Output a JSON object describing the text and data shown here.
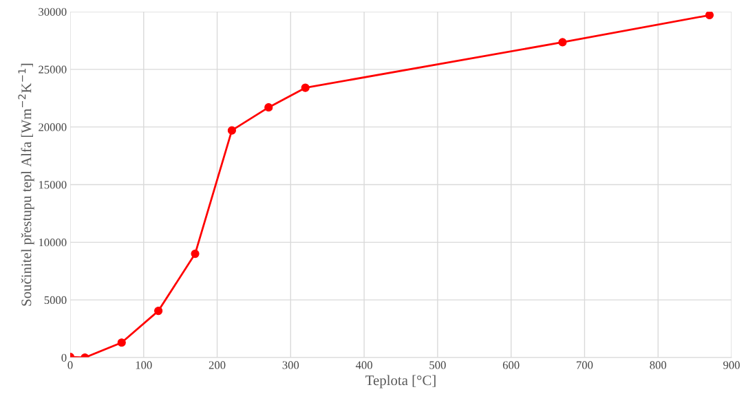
{
  "chart_data": {
    "type": "line",
    "xlabel": "Teplota [°C]",
    "ylabel": "Součinitel přestupu tepl Alfa [Wm$^{−2}$K$^{−1}$]",
    "series": [
      {
        "color": "#ff0000",
        "x": [
          0,
          20,
          70,
          120,
          170,
          220,
          270,
          320,
          670,
          870
        ],
        "values": [
          50,
          0,
          1300,
          4050,
          9000,
          19700,
          21700,
          23400,
          27350,
          29700
        ]
      }
    ],
    "xlim": [
      0,
      900
    ],
    "xticks": [
      0,
      100,
      200,
      300,
      400,
      500,
      600,
      700,
      800,
      900
    ],
    "ylim": [
      0,
      30000
    ],
    "yticks": [
      0,
      5000,
      10000,
      15000,
      20000,
      25000,
      30000
    ],
    "grid": true,
    "marker": "circle",
    "line_style": "solid"
  }
}
